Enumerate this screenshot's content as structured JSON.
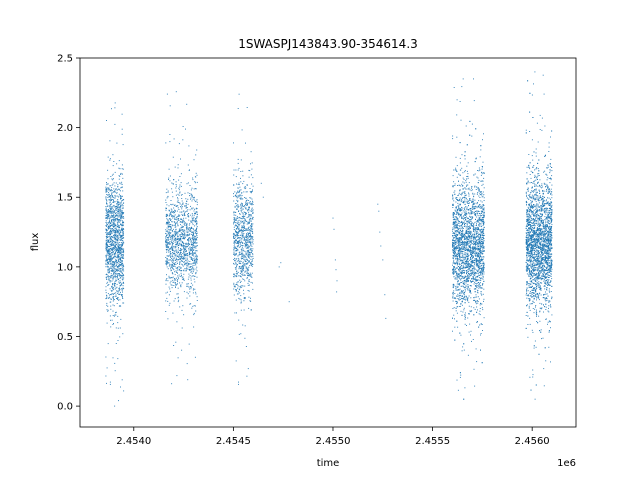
{
  "chart_data": {
    "type": "scatter",
    "title": "1SWASPJ143843.90-354614.3",
    "xlabel": "time",
    "ylabel": "flux",
    "x_offset_label": "1e6",
    "xlim": [
      2453730,
      2456220
    ],
    "ylim": [
      -0.15,
      2.5
    ],
    "xticks": [
      2454000,
      2454500,
      2455000,
      2455500,
      2456000
    ],
    "xtick_labels": [
      "2.4540",
      "2.4545",
      "2.4550",
      "2.4555",
      "2.4560"
    ],
    "yticks": [
      0.0,
      0.5,
      1.0,
      1.5,
      2.0,
      2.5
    ],
    "ytick_labels": [
      "0.0",
      "0.5",
      "1.0",
      "1.5",
      "2.0",
      "2.5"
    ],
    "grid": false,
    "point_color": "#1f77b4",
    "series": [
      {
        "points_summary": "dense clusters of observations (time, flux)",
        "clusters": [
          {
            "x_range": [
              2453860,
              2453950
            ],
            "flux_center": 1.18,
            "flux_spread": 0.22,
            "flux_min": 0.0,
            "flux_max": 2.3,
            "count": 1400
          },
          {
            "x_range": [
              2454160,
              2454320
            ],
            "flux_center": 1.18,
            "flux_spread": 0.18,
            "flux_min": 0.1,
            "flux_max": 2.3,
            "count": 1300
          },
          {
            "x_range": [
              2454500,
              2454600
            ],
            "flux_center": 1.2,
            "flux_spread": 0.2,
            "flux_min": 0.0,
            "flux_max": 2.3,
            "count": 900
          },
          {
            "x_range": [
              2455600,
              2455760
            ],
            "flux_center": 1.15,
            "flux_spread": 0.22,
            "flux_min": 0.05,
            "flux_max": 2.35,
            "count": 2600
          },
          {
            "x_range": [
              2455970,
              2456100
            ],
            "flux_center": 1.17,
            "flux_spread": 0.22,
            "flux_min": 0.05,
            "flux_max": 2.4,
            "count": 2600
          }
        ],
        "sparse_points": [
          [
            2454730,
            1.0
          ],
          [
            2454738,
            1.03
          ],
          [
            2454780,
            0.75
          ],
          [
            2455000,
            1.35
          ],
          [
            2455005,
            1.27
          ],
          [
            2455012,
            1.05
          ],
          [
            2455015,
            0.98
          ],
          [
            2455020,
            0.9
          ],
          [
            2455018,
            0.82
          ],
          [
            2455225,
            1.45
          ],
          [
            2455230,
            1.4
          ],
          [
            2455235,
            1.25
          ],
          [
            2455240,
            1.15
          ],
          [
            2455250,
            1.05
          ],
          [
            2455260,
            0.8
          ],
          [
            2455265,
            0.63
          ],
          [
            2454640,
            1.6
          ],
          [
            2454650,
            1.5
          ]
        ]
      }
    ]
  }
}
